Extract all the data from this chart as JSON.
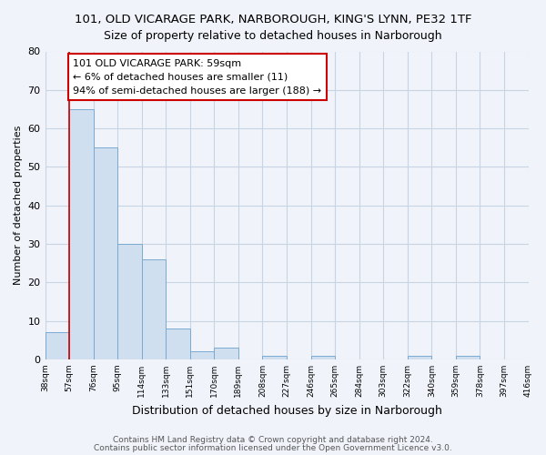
{
  "title": "101, OLD VICARAGE PARK, NARBOROUGH, KING'S LYNN, PE32 1TF",
  "subtitle": "Size of property relative to detached houses in Narborough",
  "xlabel": "Distribution of detached houses by size in Narborough",
  "ylabel": "Number of detached properties",
  "bar_values": [
    7,
    65,
    55,
    30,
    26,
    8,
    2,
    3,
    0,
    1,
    0,
    1,
    0,
    0,
    0,
    1,
    0,
    1
  ],
  "bin_labels": [
    "38sqm",
    "57sqm",
    "76sqm",
    "95sqm",
    "114sqm",
    "133sqm",
    "151sqm",
    "170sqm",
    "189sqm",
    "208sqm",
    "227sqm",
    "246sqm",
    "265sqm",
    "284sqm",
    "303sqm",
    "322sqm",
    "340sqm",
    "359sqm",
    "378sqm",
    "397sqm",
    "416sqm"
  ],
  "bar_color": "#d0dff0",
  "bar_edge_color": "#7aaad0",
  "property_line_color": "#cc0000",
  "property_line_x": 1,
  "annotation_line1": "101 OLD VICARAGE PARK: 59sqm",
  "annotation_line2": "← 6% of detached houses are smaller (11)",
  "annotation_line3": "94% of semi-detached houses are larger (188) →",
  "annotation_box_facecolor": "#ffffff",
  "annotation_box_edgecolor": "#cc0000",
  "ylim": [
    0,
    80
  ],
  "yticks": [
    0,
    10,
    20,
    30,
    40,
    50,
    60,
    70,
    80
  ],
  "grid_color": "#c8d4e4",
  "background_color": "#f0f4fa",
  "footer_line1": "Contains HM Land Registry data © Crown copyright and database right 2024.",
  "footer_line2": "Contains public sector information licensed under the Open Government Licence v3.0.",
  "title_fontsize": 9.5,
  "subtitle_fontsize": 9,
  "xlabel_fontsize": 9,
  "ylabel_fontsize": 8,
  "annotation_fontsize": 8,
  "tick_fontsize": 6.5,
  "footer_fontsize": 6.5
}
